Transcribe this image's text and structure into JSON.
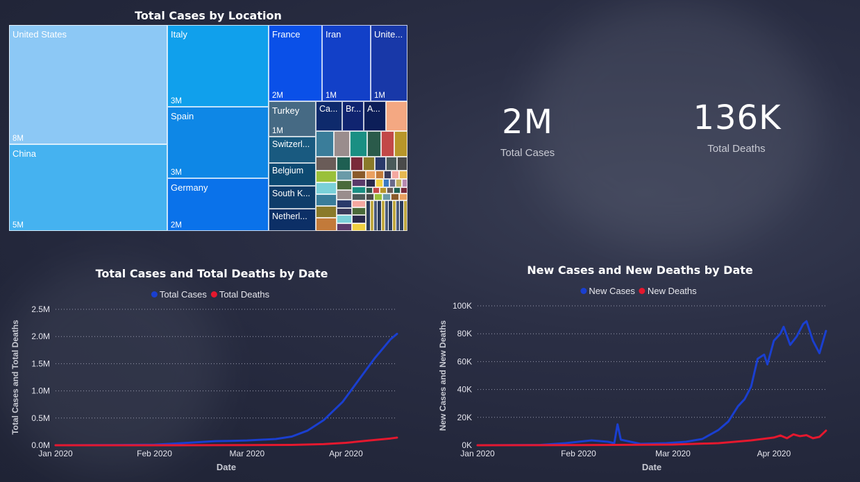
{
  "treemap": {
    "title": "Total Cases by Location",
    "cells": [
      {
        "label": "United States",
        "value": "8M",
        "color": "#8cc8f5"
      },
      {
        "label": "China",
        "value": "5M",
        "color": "#45b2f0"
      },
      {
        "label": "Italy",
        "value": "3M",
        "color": "#10a0ec"
      },
      {
        "label": "Spain",
        "value": "3M",
        "color": "#0e87e6"
      },
      {
        "label": "Germany",
        "value": "2M",
        "color": "#0a72ea"
      },
      {
        "label": "France",
        "value": "2M",
        "color": "#0a50e8"
      },
      {
        "label": "Iran",
        "value": "1M",
        "color": "#1240c8"
      },
      {
        "label": "Unite...",
        "value": "1M",
        "color": "#1838a8"
      },
      {
        "label": "Turkey",
        "value": "1M",
        "color": "#466a84"
      },
      {
        "label": "Switzerl...",
        "value": "",
        "color": "#195a80"
      },
      {
        "label": "Belgium",
        "value": "",
        "color": "#0d4a72"
      },
      {
        "label": "South K...",
        "value": "",
        "color": "#0f3d6a"
      },
      {
        "label": "Netherl...",
        "value": "",
        "color": "#0c2f66"
      },
      {
        "label": "Ca...",
        "value": "",
        "color": "#0e2a6c"
      },
      {
        "label": "Br...",
        "value": "",
        "color": "#102470"
      },
      {
        "label": "A...",
        "value": "",
        "color": "#0c1e58"
      }
    ]
  },
  "kpis": [
    {
      "value": "2M",
      "label": "Total Cases"
    },
    {
      "value": "136K",
      "label": "Total Deaths"
    }
  ],
  "chart_data": [
    {
      "type": "line",
      "title": "Total Cases and Total Deaths by Date",
      "xlabel": "Date",
      "ylabel": "Total Cases and Total Deaths",
      "x_ticks": [
        "Jan 2020",
        "Feb 2020",
        "Mar 2020",
        "Apr 2020"
      ],
      "y_ticks": [
        "0.0M",
        "0.5M",
        "1.0M",
        "1.5M",
        "2.0M",
        "2.5M"
      ],
      "ylim": [
        0,
        2500000
      ],
      "xlim": [
        "2020-01-01",
        "2020-04-17"
      ],
      "legend_position": "top-center",
      "grid": true,
      "series": [
        {
          "name": "Total Cases",
          "color": "#1a3fd0",
          "points": [
            [
              "2020-01-01",
              0
            ],
            [
              "2020-01-20",
              5000
            ],
            [
              "2020-02-01",
              12000
            ],
            [
              "2020-02-10",
              40000
            ],
            [
              "2020-02-20",
              75000
            ],
            [
              "2020-02-25",
              80000
            ],
            [
              "2020-03-01",
              88000
            ],
            [
              "2020-03-10",
              115000
            ],
            [
              "2020-03-15",
              160000
            ],
            [
              "2020-03-20",
              270000
            ],
            [
              "2020-03-25",
              460000
            ],
            [
              "2020-03-31",
              800000
            ],
            [
              "2020-04-05",
              1200000
            ],
            [
              "2020-04-10",
              1600000
            ],
            [
              "2020-04-15",
              1950000
            ],
            [
              "2020-04-17",
              2050000
            ]
          ]
        },
        {
          "name": "Total Deaths",
          "color": "#e5182e",
          "points": [
            [
              "2020-01-01",
              0
            ],
            [
              "2020-02-01",
              300
            ],
            [
              "2020-03-01",
              3000
            ],
            [
              "2020-03-15",
              6000
            ],
            [
              "2020-03-25",
              20000
            ],
            [
              "2020-04-01",
              45000
            ],
            [
              "2020-04-08",
              85000
            ],
            [
              "2020-04-15",
              125000
            ],
            [
              "2020-04-17",
              140000
            ]
          ]
        }
      ]
    },
    {
      "type": "line",
      "title": "New Cases and New Deaths by Date",
      "xlabel": "Date",
      "ylabel": "New Cases and New Deaths",
      "x_ticks": [
        "Jan 2020",
        "Feb 2020",
        "Mar 2020",
        "Apr 2020"
      ],
      "y_ticks": [
        "0K",
        "20K",
        "40K",
        "60K",
        "80K",
        "100K"
      ],
      "ylim": [
        0,
        100000
      ],
      "xlim": [
        "2020-01-01",
        "2020-04-17"
      ],
      "legend_position": "top-center",
      "grid": true,
      "series": [
        {
          "name": "New Cases",
          "color": "#1a3fd0",
          "points": [
            [
              "2020-01-01",
              0
            ],
            [
              "2020-01-20",
              200
            ],
            [
              "2020-01-28",
              1500
            ],
            [
              "2020-02-05",
              3500
            ],
            [
              "2020-02-10",
              2500
            ],
            [
              "2020-02-12",
              1500
            ],
            [
              "2020-02-13",
              15000
            ],
            [
              "2020-02-14",
              4000
            ],
            [
              "2020-02-20",
              1000
            ],
            [
              "2020-02-28",
              1500
            ],
            [
              "2020-03-05",
              2500
            ],
            [
              "2020-03-10",
              4500
            ],
            [
              "2020-03-15",
              11000
            ],
            [
              "2020-03-18",
              17000
            ],
            [
              "2020-03-21",
              28000
            ],
            [
              "2020-03-23",
              33000
            ],
            [
              "2020-03-25",
              42000
            ],
            [
              "2020-03-27",
              62000
            ],
            [
              "2020-03-29",
              65000
            ],
            [
              "2020-03-30",
              58000
            ],
            [
              "2020-04-01",
              75000
            ],
            [
              "2020-04-03",
              80000
            ],
            [
              "2020-04-04",
              85000
            ],
            [
              "2020-04-06",
              72000
            ],
            [
              "2020-04-08",
              78000
            ],
            [
              "2020-04-10",
              87000
            ],
            [
              "2020-04-11",
              89000
            ],
            [
              "2020-04-13",
              75000
            ],
            [
              "2020-04-15",
              66000
            ],
            [
              "2020-04-17",
              82000
            ]
          ]
        },
        {
          "name": "New Deaths",
          "color": "#e5182e",
          "points": [
            [
              "2020-01-01",
              0
            ],
            [
              "2020-02-01",
              100
            ],
            [
              "2020-03-01",
              500
            ],
            [
              "2020-03-15",
              1500
            ],
            [
              "2020-03-25",
              3500
            ],
            [
              "2020-04-01",
              5500
            ],
            [
              "2020-04-03",
              7000
            ],
            [
              "2020-04-05",
              5000
            ],
            [
              "2020-04-07",
              7800
            ],
            [
              "2020-04-09",
              6500
            ],
            [
              "2020-04-11",
              7200
            ],
            [
              "2020-04-13",
              5000
            ],
            [
              "2020-04-15",
              6000
            ],
            [
              "2020-04-17",
              10500
            ]
          ]
        }
      ]
    }
  ]
}
